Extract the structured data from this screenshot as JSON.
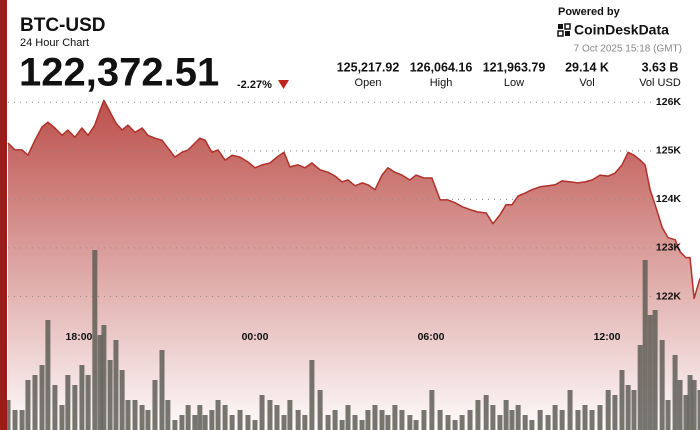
{
  "header": {
    "symbol": "BTC-USD",
    "subtitle": "24 Hour Chart",
    "price": "122,372.51",
    "change": "-2.27%",
    "stats": [
      {
        "value": "125,217.92",
        "label": "Open"
      },
      {
        "value": "126,064.16",
        "label": "High"
      },
      {
        "value": "121,963.79",
        "label": "Low"
      },
      {
        "value": "29.14 K",
        "label": "Vol"
      },
      {
        "value": "3.63 B",
        "label": "Vol USD"
      }
    ],
    "powered": "Powered by",
    "brand": "CoinDeskData",
    "timestamp": "7 Oct 2025 15:18 (GMT)"
  },
  "chart_data": {
    "type": "area",
    "x": [
      -8.42,
      -8.18,
      -7.94,
      -7.74,
      -7.5,
      -7.26,
      -7.06,
      -6.82,
      -6.58,
      -6.38,
      -6.14,
      -5.9,
      -5.69,
      -5.46,
      -5.28,
      -5.15,
      -4.94,
      -4.74,
      -4.53,
      -4.33,
      -4.09,
      -3.85,
      -3.65,
      -3.41,
      -3.17,
      -2.97,
      -2.73,
      -2.49,
      -2.28,
      -2.05,
      -1.88,
      -1.7,
      -1.47,
      -1.26,
      -1.02,
      -0.78,
      -0.51,
      -0.24,
      0,
      0.24,
      0.51,
      0.75,
      0.99,
      1.19,
      1.47,
      1.7,
      1.94,
      2.22,
      2.49,
      2.73,
      2.97,
      3.17,
      3.41,
      3.65,
      3.85,
      4.09,
      4.33,
      4.53,
      4.77,
      5.01,
      5.28,
      5.49,
      5.76,
      6.03,
      6.31,
      6.58,
      6.82,
      7.06,
      7.33,
      7.6,
      7.88,
      8.11,
      8.35,
      8.56,
      8.76,
      8.97,
      9.21,
      9.44,
      9.72,
      9.99,
      10.23,
      10.47,
      10.74,
      11.01,
      11.25,
      11.49,
      11.76,
      12.04,
      12.27,
      12.51,
      12.72,
      12.92,
      13.13,
      13.3,
      13.47,
      13.64,
      13.88,
      14.08,
      14.32,
      14.49,
      14.69,
      14.83,
      14.97,
      15.17
    ],
    "series": [
      {
        "color": "#b0302a",
        "values": [
          125160,
          125020,
          125020,
          124910,
          125220,
          125490,
          125590,
          125470,
          125320,
          125430,
          125280,
          125470,
          125320,
          125530,
          125840,
          126040,
          125800,
          125570,
          125430,
          125530,
          125380,
          125470,
          125320,
          125260,
          125220,
          125060,
          124870,
          124970,
          125020,
          125160,
          125260,
          125220,
          124970,
          125020,
          124810,
          124910,
          124870,
          124770,
          124650,
          124710,
          124750,
          124870,
          124970,
          124670,
          124710,
          124650,
          124750,
          124610,
          124560,
          124480,
          124360,
          124400,
          124280,
          124340,
          124300,
          124200,
          124500,
          124650,
          124560,
          124500,
          124400,
          124500,
          124440,
          124440,
          123990,
          123990,
          123930,
          123850,
          123790,
          123740,
          123720,
          123500,
          123680,
          123890,
          123890,
          124070,
          124130,
          124200,
          124260,
          124280,
          124300,
          124380,
          124360,
          124340,
          124360,
          124400,
          124500,
          124480,
          124540,
          124710,
          124970,
          124910,
          124810,
          124710,
          124200,
          123890,
          123420,
          123210,
          123170,
          122920,
          122800,
          122800,
          121960,
          122370
        ]
      }
    ],
    "volume": {
      "color": "#5e5e56",
      "values": [
        30,
        20,
        20,
        50,
        55,
        65,
        110,
        45,
        25,
        55,
        45,
        65,
        55,
        180,
        95,
        105,
        70,
        90,
        60,
        30,
        30,
        25,
        20,
        50,
        80,
        30,
        10,
        15,
        25,
        15,
        25,
        15,
        20,
        30,
        25,
        15,
        20,
        15,
        10,
        35,
        30,
        25,
        15,
        30,
        20,
        15,
        70,
        40,
        15,
        20,
        10,
        25,
        15,
        10,
        20,
        25,
        20,
        15,
        25,
        20,
        15,
        10,
        20,
        40,
        20,
        15,
        10,
        15,
        20,
        30,
        35,
        25,
        15,
        30,
        20,
        25,
        15,
        10,
        20,
        15,
        25,
        20,
        40,
        20,
        25,
        20,
        25,
        40,
        35,
        60,
        45,
        40,
        85,
        170,
        115,
        120,
        90,
        30,
        75,
        50,
        35,
        55,
        50,
        40
      ]
    },
    "xlim": [
      -8.42,
      15.17
    ],
    "ylim": [
      119250,
      126150
    ],
    "y2lim": [
      0,
      335
    ],
    "xticks": [
      {
        "value": -6,
        "label": "18:00"
      },
      {
        "value": 0,
        "label": "00:00"
      },
      {
        "value": 6,
        "label": "06:00"
      },
      {
        "value": 12,
        "label": "12:00"
      }
    ],
    "yticks": [
      {
        "value": 122000,
        "label": "122K"
      },
      {
        "value": 123000,
        "label": "123K"
      },
      {
        "value": 124000,
        "label": "124K"
      },
      {
        "value": 125000,
        "label": "125K"
      },
      {
        "value": 126000,
        "label": "126K"
      }
    ],
    "grid": true
  }
}
